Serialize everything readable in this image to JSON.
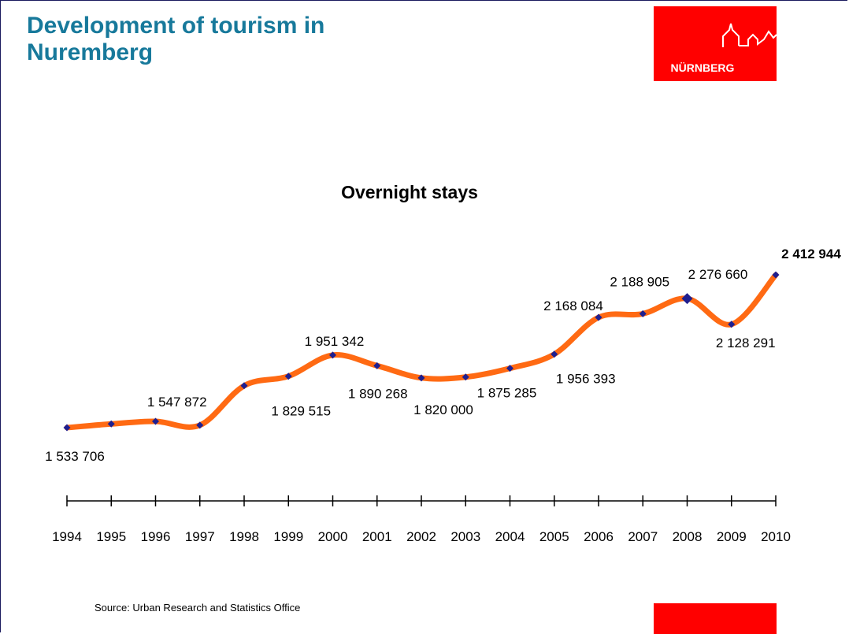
{
  "header": {
    "title": "Development of tourism in Nuremberg",
    "logo": "NÜRNBERG"
  },
  "footer": {
    "source": "Source: Urban Research and Statistics Office"
  },
  "chart_data": {
    "type": "line",
    "title": "Overnight stays",
    "categories": [
      "1994",
      "1995",
      "1996",
      "1997",
      "1998",
      "1999",
      "2000",
      "2001",
      "2002",
      "2003",
      "2004",
      "2005",
      "2006",
      "2007",
      "2008",
      "2009",
      "2010"
    ],
    "values": [
      1533706,
      1555000,
      1570000,
      1547872,
      1775000,
      1829515,
      1951342,
      1890268,
      1820000,
      1825000,
      1875285,
      1956393,
      2168084,
      2188905,
      2276660,
      2128291,
      2412944
    ],
    "value_labels": [
      "1 533 706",
      null,
      null,
      "1 547 872",
      null,
      "1 829 515",
      "1 951 342",
      "1 890 268",
      "1 820 000",
      null,
      "1 875 285",
      "1 956 393",
      "2 168 084",
      "2 188 905",
      "2 276 660",
      "2 128 291",
      "2 412 944"
    ],
    "color": "#ff6a13",
    "marker_color": "#1f1f8f"
  }
}
